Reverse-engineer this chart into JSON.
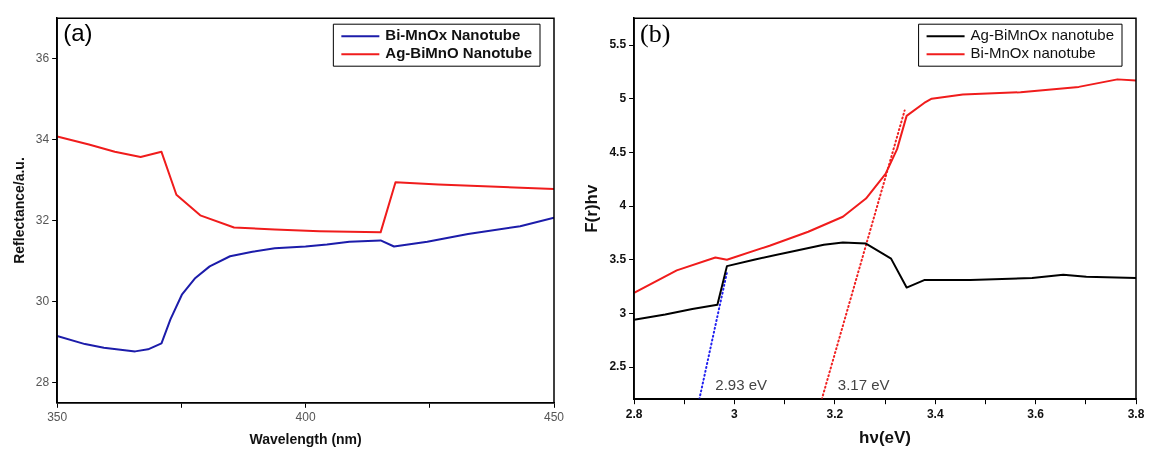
{
  "chart_data": [
    {
      "type": "line",
      "title": "(a)",
      "xlabel": "Wavelength (nm)",
      "ylabel": "Reflectance/a.u.",
      "xlim": [
        350,
        450
      ],
      "xticks": [
        350,
        {
          "value": 375,
          "label": null
        },
        400,
        {
          "value": 425,
          "label": null
        },
        450
      ],
      "ylim": [
        27.5,
        37
      ],
      "yticks": [
        28,
        30,
        32,
        34,
        36
      ],
      "grid": false,
      "legend": "top right",
      "marker": "none",
      "line_style": "solid",
      "series": [
        {
          "name": "Bi-MnOx Nanotube",
          "color": "#1c1caa",
          "x": [
            350,
            355.6,
            359.4,
            365.7,
            368.3,
            371,
            372.8,
            375.1,
            377.7,
            380.7,
            384.8,
            389.3,
            393.8,
            400,
            404.3,
            408.8,
            415.1,
            417.8,
            424.5,
            432.7,
            443.2,
            450
          ],
          "values": [
            29.15,
            28.95,
            28.86,
            28.77,
            28.82,
            28.97,
            29.56,
            30.17,
            30.57,
            30.87,
            31.12,
            31.23,
            31.32,
            31.36,
            31.41,
            31.48,
            31.51,
            31.36,
            31.48,
            31.67,
            31.86,
            32.07
          ]
        },
        {
          "name": "Ag-BiMnO Nanotube",
          "color": "#f01c1c",
          "x": [
            350,
            356.4,
            361.6,
            366.8,
            371,
            374,
            378.8,
            385.6,
            393.8,
            402.8,
            415.1,
            418.1,
            426.7,
            450
          ],
          "values": [
            34.08,
            33.88,
            33.7,
            33.57,
            33.7,
            32.64,
            32.13,
            31.83,
            31.78,
            31.74,
            31.71,
            32.95,
            32.89,
            32.78
          ]
        }
      ]
    },
    {
      "type": "line",
      "title": "(b)",
      "xlabel": "hν(eV)",
      "ylabel": "F(r)hv",
      "xlim": [
        2.8,
        3.8
      ],
      "xticks": [
        2.8,
        {
          "value": 2.9,
          "label": null
        },
        3.0,
        {
          "value": 3.1,
          "label": null
        },
        3.2,
        {
          "value": 3.3,
          "label": null
        },
        3.4,
        {
          "value": 3.5,
          "label": null
        },
        3.6,
        {
          "value": 3.7,
          "label": null
        },
        3.8
      ],
      "ylim": [
        2.2,
        5.75
      ],
      "yticks": [
        2.5,
        3.0,
        3.5,
        4.0,
        4.5,
        5.0,
        5.5
      ],
      "grid": false,
      "legend": "top right",
      "marker": "none",
      "line_style": "solid",
      "series": [
        {
          "name": "Ag-BiMnOx nanotube",
          "color": "#000000",
          "x": [
            2.8,
            2.862,
            2.916,
            2.966,
            2.985,
            3.039,
            3.108,
            3.178,
            3.216,
            3.262,
            3.312,
            3.343,
            3.378,
            3.47,
            3.593,
            3.655,
            3.701,
            3.8
          ],
          "values": [
            2.94,
            2.99,
            3.04,
            3.08,
            3.44,
            3.5,
            3.57,
            3.64,
            3.66,
            3.65,
            3.51,
            3.24,
            3.31,
            3.31,
            3.33,
            3.36,
            3.34,
            3.33
          ]
        },
        {
          "name": "Bi-MnOx nanotube",
          "color": "#f01c1c",
          "x": [
            2.8,
            2.885,
            2.962,
            2.985,
            3.07,
            3.147,
            3.216,
            3.262,
            3.301,
            3.324,
            3.343,
            3.378,
            3.393,
            3.455,
            3.57,
            3.686,
            3.763,
            3.8
          ],
          "values": [
            3.19,
            3.4,
            3.52,
            3.5,
            3.63,
            3.76,
            3.9,
            4.07,
            4.3,
            4.53,
            4.84,
            4.96,
            5.0,
            5.04,
            5.06,
            5.11,
            5.18,
            5.17
          ]
        },
        {
          "color": "#2020f0",
          "line_style": "dotted",
          "x": [
            2.93,
            2.985
          ],
          "values": [
            2.2,
            3.38
          ]
        },
        {
          "color": "#f02020",
          "line_style": "dotted",
          "x": [
            3.174,
            3.339
          ],
          "values": [
            2.2,
            4.89
          ]
        }
      ],
      "annotations": [
        {
          "text": "2.93 eV",
          "x": 2.93,
          "y": 2.2
        },
        {
          "text": "3.17 eV",
          "x": 3.174,
          "y": 2.2
        }
      ]
    }
  ]
}
